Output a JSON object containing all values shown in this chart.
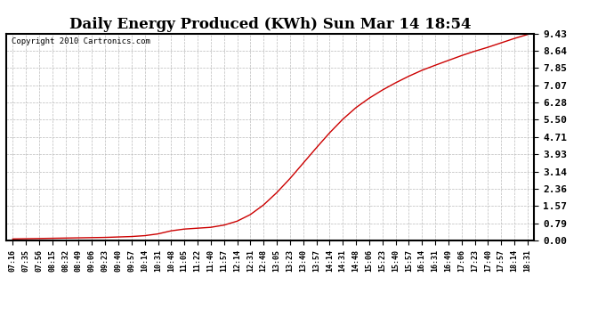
{
  "title": "Daily Energy Produced (KWh) Sun Mar 14 18:54",
  "copyright_text": "Copyright 2010 Cartronics.com",
  "yticks": [
    0.0,
    0.79,
    1.57,
    2.36,
    3.14,
    3.93,
    4.71,
    5.5,
    6.28,
    7.07,
    7.85,
    8.64,
    9.43
  ],
  "ylim": [
    0.0,
    9.43
  ],
  "line_color": "#cc0000",
  "bg_color": "#ffffff",
  "plot_bg_color": "#ffffff",
  "grid_color": "#bbbbbb",
  "title_fontsize": 12,
  "xtick_labels": [
    "07:16",
    "07:35",
    "07:56",
    "08:15",
    "08:32",
    "08:49",
    "09:06",
    "09:23",
    "09:40",
    "09:57",
    "10:14",
    "10:31",
    "10:48",
    "11:05",
    "11:22",
    "11:40",
    "11:57",
    "12:14",
    "12:31",
    "12:48",
    "13:05",
    "13:23",
    "13:40",
    "13:57",
    "14:14",
    "14:31",
    "14:48",
    "15:06",
    "15:23",
    "15:40",
    "15:57",
    "16:14",
    "16:31",
    "16:49",
    "17:06",
    "17:23",
    "17:40",
    "17:57",
    "18:14",
    "18:31"
  ],
  "data_y": [
    0.07,
    0.08,
    0.09,
    0.1,
    0.11,
    0.12,
    0.13,
    0.14,
    0.16,
    0.18,
    0.22,
    0.3,
    0.44,
    0.52,
    0.56,
    0.6,
    0.7,
    0.88,
    1.18,
    1.62,
    2.18,
    2.82,
    3.52,
    4.22,
    4.9,
    5.52,
    6.05,
    6.48,
    6.85,
    7.18,
    7.48,
    7.75,
    7.98,
    8.2,
    8.42,
    8.62,
    8.8,
    9.0,
    9.2,
    9.38
  ]
}
